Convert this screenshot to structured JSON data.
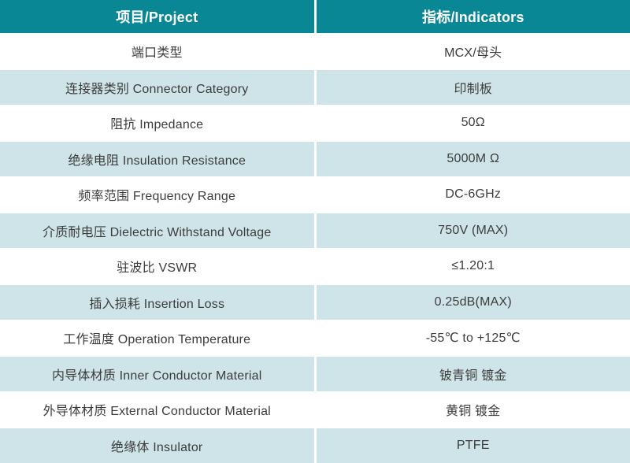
{
  "table": {
    "colors": {
      "header_bg": "#0a8794",
      "header_text": "#ffffff",
      "row_alt_bg": "#cee4e8",
      "row_bg": "#ffffff",
      "body_text": "#3c3c3c"
    },
    "header": {
      "project_label": "项目/Project",
      "indicators_label": "指标/Indicators"
    },
    "rows": [
      {
        "project": "端口类型",
        "indicator": "MCX/母头"
      },
      {
        "project": "连接器类别 Connector Category",
        "indicator": "印制板"
      },
      {
        "project": "阻抗 Impedance",
        "indicator": "50Ω"
      },
      {
        "project": "绝缘电阻 Insulation Resistance",
        "indicator": "5000M Ω"
      },
      {
        "project": "频率范围 Frequency Range",
        "indicator": "DC-6GHz"
      },
      {
        "project": "介质耐电压 Dielectric Withstand Voltage",
        "indicator": "750V (MAX)"
      },
      {
        "project": "驻波比 VSWR",
        "indicator": "≤1.20:1"
      },
      {
        "project": "插入损耗 Insertion Loss",
        "indicator": "0.25dB(MAX)"
      },
      {
        "project": "工作温度 Operation Temperature",
        "indicator": "-55℃ to +125℃"
      },
      {
        "project": "内导体材质 Inner Conductor Material",
        "indicator": "铍青铜 镀金"
      },
      {
        "project": "外导体材质 External Conductor Material",
        "indicator": "黄铜 镀金"
      },
      {
        "project": "绝缘体 Insulator",
        "indicator": "PTFE"
      }
    ]
  }
}
